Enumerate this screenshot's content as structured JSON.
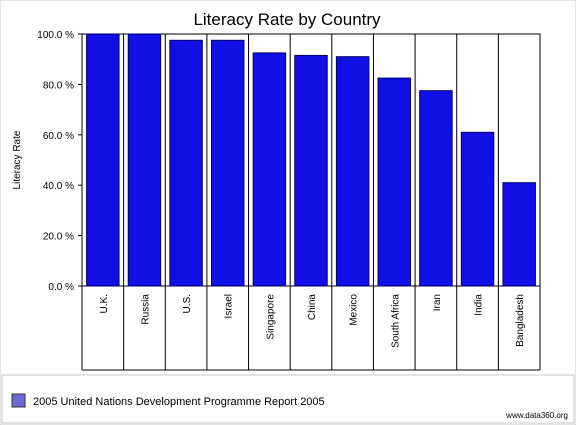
{
  "chart_data": {
    "type": "bar",
    "title": "Literacy Rate by Country",
    "xlabel": "",
    "ylabel": "Literacy Rate",
    "categories": [
      "U.K.",
      "Russia",
      "U.S.",
      "Israel",
      "Singapore",
      "China",
      "Mexico",
      "South Africa",
      "Iran",
      "India",
      "Bangladesh"
    ],
    "series": [
      {
        "name": "2005 United Nations Development Programme Report 2005",
        "values": [
          100,
          100,
          97.5,
          97.5,
          92.5,
          91.5,
          91,
          82.5,
          77.5,
          61,
          41
        ]
      }
    ],
    "ylim": [
      0,
      100
    ],
    "yticks": [
      0,
      20,
      40,
      60,
      80,
      100
    ],
    "ytick_labels": [
      "0.0 %",
      "20.0 %",
      "40.0 %",
      "60.0 %",
      "80.0 %",
      "100.0 %"
    ],
    "grid": "vertical category separators",
    "legend_position": "bottom-left",
    "bar_color": "#1010e6",
    "bar_stroke": "#000066",
    "legend_swatch_color": "#6b6bd8"
  },
  "watermark": "www.data360.org"
}
